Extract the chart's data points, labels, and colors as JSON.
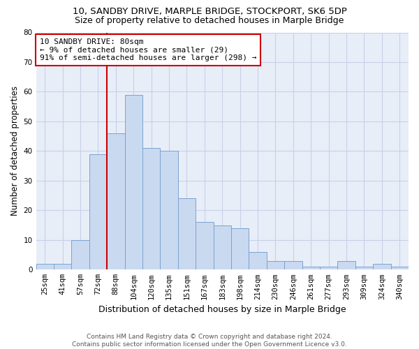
{
  "title1": "10, SANDBY DRIVE, MARPLE BRIDGE, STOCKPORT, SK6 5DP",
  "title2": "Size of property relative to detached houses in Marple Bridge",
  "xlabel": "Distribution of detached houses by size in Marple Bridge",
  "ylabel": "Number of detached properties",
  "categories": [
    "25sqm",
    "41sqm",
    "57sqm",
    "72sqm",
    "88sqm",
    "104sqm",
    "120sqm",
    "135sqm",
    "151sqm",
    "167sqm",
    "183sqm",
    "198sqm",
    "214sqm",
    "230sqm",
    "246sqm",
    "261sqm",
    "277sqm",
    "293sqm",
    "309sqm",
    "324sqm",
    "340sqm"
  ],
  "values": [
    2,
    2,
    10,
    39,
    46,
    59,
    41,
    40,
    24,
    16,
    15,
    14,
    6,
    3,
    3,
    1,
    1,
    3,
    1,
    2,
    1
  ],
  "bar_color": "#c9d9f0",
  "bar_edge_color": "#7ba3d0",
  "grid_color": "#c8d0e8",
  "annotation_box_text": "10 SANDBY DRIVE: 80sqm\n← 9% of detached houses are smaller (29)\n91% of semi-detached houses are larger (298) →",
  "annotation_box_color": "#cc0000",
  "vline_color": "#cc0000",
  "ylim": [
    0,
    80
  ],
  "yticks": [
    0,
    10,
    20,
    30,
    40,
    50,
    60,
    70,
    80
  ],
  "footer1": "Contains HM Land Registry data © Crown copyright and database right 2024.",
  "footer2": "Contains public sector information licensed under the Open Government Licence v3.0.",
  "background_color": "#e8eef8",
  "title_fontsize": 9.5,
  "subtitle_fontsize": 9,
  "tick_fontsize": 7.5,
  "ylabel_fontsize": 8.5,
  "xlabel_fontsize": 9,
  "annotation_fontsize": 8,
  "footer_fontsize": 6.5
}
